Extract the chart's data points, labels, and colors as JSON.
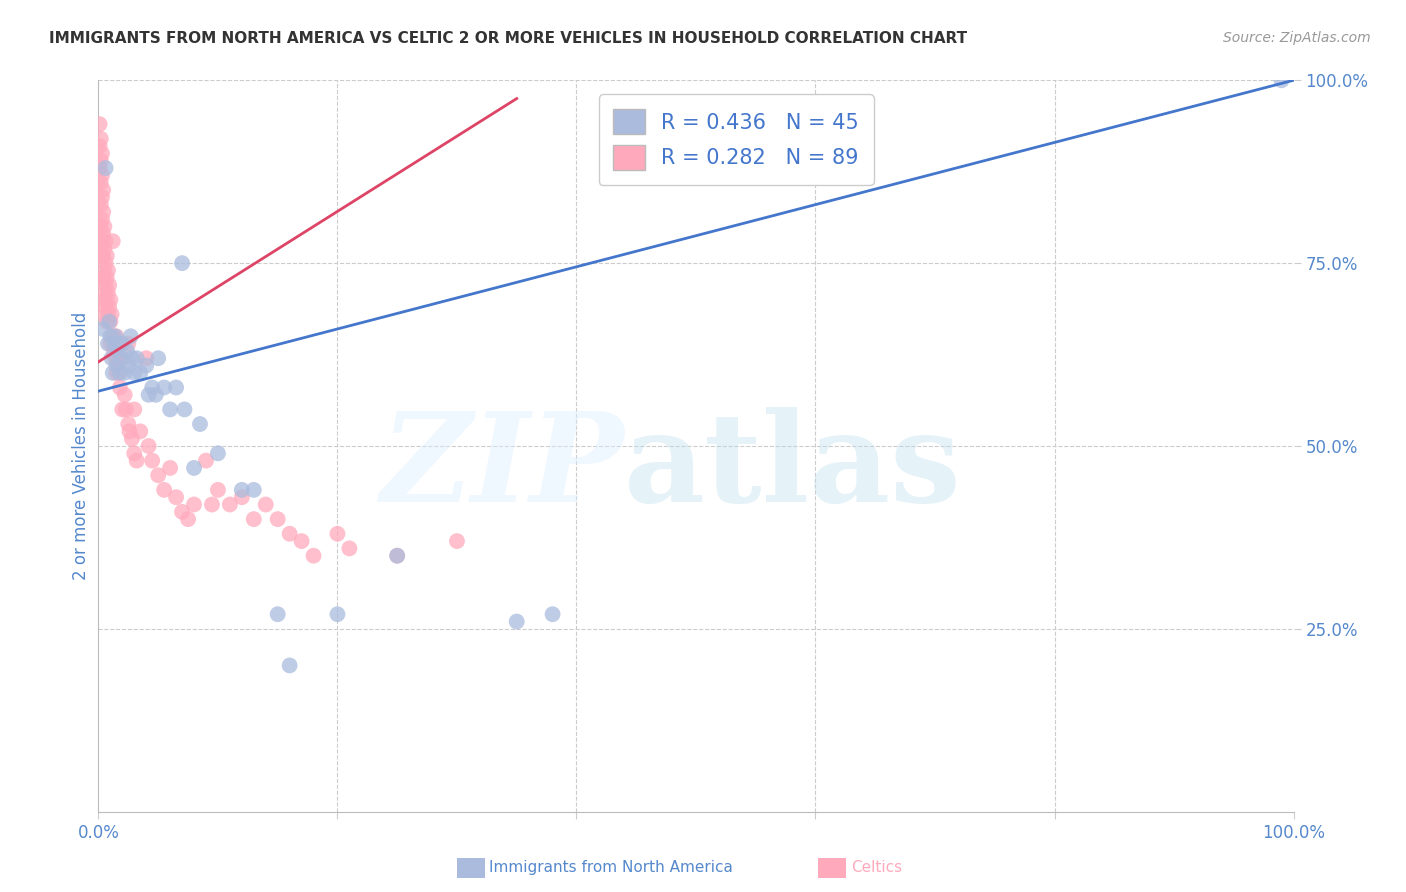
{
  "title": "IMMIGRANTS FROM NORTH AMERICA VS CELTIC 2 OR MORE VEHICLES IN HOUSEHOLD CORRELATION CHART",
  "source": "Source: ZipAtlas.com",
  "ylabel": "2 or more Vehicles in Household",
  "xlim": [
    0,
    1
  ],
  "ylim": [
    0,
    1
  ],
  "blue_color": "#AABBDD",
  "pink_color": "#FFAABC",
  "blue_line_color": "#4477CC",
  "pink_line_color": "#DD4466",
  "legend_text_color": "#4477CC",
  "blue_R": 0.436,
  "blue_N": 45,
  "pink_R": 0.282,
  "pink_N": 89,
  "axis_tick_color": "#5588CC",
  "grid_color": "#CCCCCC",
  "title_color": "#333333",
  "source_color": "#999999",
  "blue_scatter": [
    [
      0.004,
      0.66
    ],
    [
      0.006,
      0.88
    ],
    [
      0.008,
      0.64
    ],
    [
      0.009,
      0.67
    ],
    [
      0.01,
      0.65
    ],
    [
      0.011,
      0.62
    ],
    [
      0.012,
      0.6
    ],
    [
      0.013,
      0.64
    ],
    [
      0.014,
      0.65
    ],
    [
      0.015,
      0.61
    ],
    [
      0.016,
      0.63
    ],
    [
      0.017,
      0.64
    ],
    [
      0.018,
      0.6
    ],
    [
      0.019,
      0.62
    ],
    [
      0.02,
      0.64
    ],
    [
      0.022,
      0.6
    ],
    [
      0.024,
      0.63
    ],
    [
      0.025,
      0.61
    ],
    [
      0.027,
      0.65
    ],
    [
      0.028,
      0.62
    ],
    [
      0.03,
      0.6
    ],
    [
      0.032,
      0.62
    ],
    [
      0.035,
      0.6
    ],
    [
      0.04,
      0.61
    ],
    [
      0.042,
      0.57
    ],
    [
      0.045,
      0.58
    ],
    [
      0.048,
      0.57
    ],
    [
      0.05,
      0.62
    ],
    [
      0.055,
      0.58
    ],
    [
      0.06,
      0.55
    ],
    [
      0.065,
      0.58
    ],
    [
      0.07,
      0.75
    ],
    [
      0.072,
      0.55
    ],
    [
      0.08,
      0.47
    ],
    [
      0.085,
      0.53
    ],
    [
      0.1,
      0.49
    ],
    [
      0.12,
      0.44
    ],
    [
      0.13,
      0.44
    ],
    [
      0.15,
      0.27
    ],
    [
      0.16,
      0.2
    ],
    [
      0.2,
      0.27
    ],
    [
      0.25,
      0.35
    ],
    [
      0.35,
      0.26
    ],
    [
      0.38,
      0.27
    ],
    [
      0.99,
      1.0
    ]
  ],
  "pink_scatter": [
    [
      0.001,
      0.94
    ],
    [
      0.001,
      0.91
    ],
    [
      0.001,
      0.88
    ],
    [
      0.002,
      0.92
    ],
    [
      0.002,
      0.89
    ],
    [
      0.002,
      0.86
    ],
    [
      0.002,
      0.83
    ],
    [
      0.002,
      0.8
    ],
    [
      0.003,
      0.9
    ],
    [
      0.003,
      0.87
    ],
    [
      0.003,
      0.84
    ],
    [
      0.003,
      0.81
    ],
    [
      0.003,
      0.78
    ],
    [
      0.003,
      0.76
    ],
    [
      0.003,
      0.73
    ],
    [
      0.004,
      0.85
    ],
    [
      0.004,
      0.82
    ],
    [
      0.004,
      0.79
    ],
    [
      0.004,
      0.76
    ],
    [
      0.004,
      0.73
    ],
    [
      0.004,
      0.7
    ],
    [
      0.005,
      0.8
    ],
    [
      0.005,
      0.77
    ],
    [
      0.005,
      0.74
    ],
    [
      0.005,
      0.71
    ],
    [
      0.005,
      0.68
    ],
    [
      0.006,
      0.78
    ],
    [
      0.006,
      0.75
    ],
    [
      0.006,
      0.72
    ],
    [
      0.006,
      0.69
    ],
    [
      0.007,
      0.76
    ],
    [
      0.007,
      0.73
    ],
    [
      0.007,
      0.7
    ],
    [
      0.007,
      0.67
    ],
    [
      0.008,
      0.74
    ],
    [
      0.008,
      0.71
    ],
    [
      0.008,
      0.68
    ],
    [
      0.009,
      0.72
    ],
    [
      0.009,
      0.69
    ],
    [
      0.01,
      0.7
    ],
    [
      0.01,
      0.67
    ],
    [
      0.01,
      0.64
    ],
    [
      0.011,
      0.68
    ],
    [
      0.012,
      0.78
    ],
    [
      0.012,
      0.65
    ],
    [
      0.013,
      0.63
    ],
    [
      0.014,
      0.62
    ],
    [
      0.015,
      0.65
    ],
    [
      0.015,
      0.6
    ],
    [
      0.016,
      0.62
    ],
    [
      0.017,
      0.6
    ],
    [
      0.018,
      0.58
    ],
    [
      0.02,
      0.62
    ],
    [
      0.02,
      0.55
    ],
    [
      0.022,
      0.57
    ],
    [
      0.023,
      0.55
    ],
    [
      0.025,
      0.64
    ],
    [
      0.025,
      0.53
    ],
    [
      0.026,
      0.52
    ],
    [
      0.028,
      0.51
    ],
    [
      0.03,
      0.55
    ],
    [
      0.03,
      0.49
    ],
    [
      0.032,
      0.48
    ],
    [
      0.035,
      0.52
    ],
    [
      0.04,
      0.62
    ],
    [
      0.042,
      0.5
    ],
    [
      0.045,
      0.48
    ],
    [
      0.05,
      0.46
    ],
    [
      0.055,
      0.44
    ],
    [
      0.06,
      0.47
    ],
    [
      0.065,
      0.43
    ],
    [
      0.07,
      0.41
    ],
    [
      0.075,
      0.4
    ],
    [
      0.08,
      0.42
    ],
    [
      0.09,
      0.48
    ],
    [
      0.095,
      0.42
    ],
    [
      0.1,
      0.44
    ],
    [
      0.11,
      0.42
    ],
    [
      0.12,
      0.43
    ],
    [
      0.13,
      0.4
    ],
    [
      0.14,
      0.42
    ],
    [
      0.15,
      0.4
    ],
    [
      0.16,
      0.38
    ],
    [
      0.17,
      0.37
    ],
    [
      0.18,
      0.35
    ],
    [
      0.2,
      0.38
    ],
    [
      0.21,
      0.36
    ],
    [
      0.25,
      0.35
    ],
    [
      0.3,
      0.37
    ]
  ],
  "blue_line_pts": [
    [
      0.0,
      0.575
    ],
    [
      1.0,
      1.0
    ]
  ],
  "pink_line_pts": [
    [
      0.0,
      0.615
    ],
    [
      0.35,
      0.975
    ]
  ]
}
